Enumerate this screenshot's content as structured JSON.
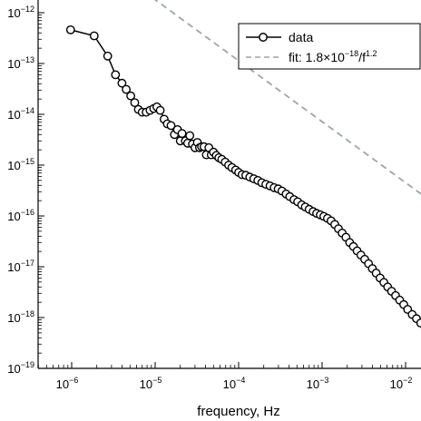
{
  "chart_data": {
    "type": "line",
    "xscale": "log",
    "yscale": "log",
    "xlim": [
      4e-07,
      0.02
    ],
    "ylim": [
      1e-19,
      1e-12
    ],
    "xlabel": "frequency, Hz",
    "ylabel": "",
    "grid": false,
    "legend_position": "top-right",
    "x_ticks": [
      {
        "base": "10",
        "exp": "−6",
        "value": 1e-06
      },
      {
        "base": "10",
        "exp": "−5",
        "value": 1e-05
      },
      {
        "base": "10",
        "exp": "−4",
        "value": 0.0001
      },
      {
        "base": "10",
        "exp": "−3",
        "value": 0.001
      },
      {
        "base": "10",
        "exp": "−2",
        "value": 0.01
      }
    ],
    "y_ticks": [
      {
        "base": "10",
        "exp": "−12",
        "value": 1e-12
      },
      {
        "base": "10",
        "exp": "−13",
        "value": 1e-13
      },
      {
        "base": "10",
        "exp": "−14",
        "value": 1e-14
      },
      {
        "base": "10",
        "exp": "−15",
        "value": 1e-15
      },
      {
        "base": "10",
        "exp": "−16",
        "value": 1e-16
      },
      {
        "base": "10",
        "exp": "−17",
        "value": 1e-17
      },
      {
        "base": "10",
        "exp": "−18",
        "value": 1e-18
      },
      {
        "base": "10",
        "exp": "−19",
        "value": 1e-19
      }
    ],
    "series": [
      {
        "name": "data",
        "style": "line+circle-markers",
        "color": "#000000",
        "points": [
          [
            9.7e-07,
            4.6e-13
          ],
          [
            1.86e-06,
            3.5e-13
          ],
          [
            2.7e-06,
            1.4e-13
          ],
          [
            3.35e-06,
            6e-14
          ],
          [
            4e-06,
            4.1e-14
          ],
          [
            4.5e-06,
            3.1e-14
          ],
          [
            5.1e-06,
            2.3e-14
          ],
          [
            5.7e-06,
            1.7e-14
          ],
          [
            6.3e-06,
            1.25e-14
          ],
          [
            7e-06,
            1.1e-14
          ],
          [
            7.8e-06,
            1.1e-14
          ],
          [
            8.7e-06,
            1.2e-14
          ],
          [
            9.6e-06,
            1.3e-14
          ],
          [
            1.05e-05,
            1.4e-14
          ],
          [
            1.15e-05,
            1.2e-14
          ],
          [
            1.28e-05,
            8e-15
          ],
          [
            1.4e-05,
            6.5e-15
          ],
          [
            1.55e-05,
            6e-15
          ],
          [
            1.7e-05,
            4e-15
          ],
          [
            1.85e-05,
            5e-15
          ],
          [
            2e-05,
            3e-15
          ],
          [
            2.1e-05,
            4.2e-15
          ],
          [
            2.3e-05,
            3e-15
          ],
          [
            2.45e-05,
            2.7e-15
          ],
          [
            2.6e-05,
            3.8e-15
          ],
          [
            2.8e-05,
            2.6e-15
          ],
          [
            3e-05,
            2.2e-15
          ],
          [
            3.2e-05,
            2.8e-15
          ],
          [
            3.4e-05,
            2.2e-15
          ],
          [
            3.6e-05,
            2.3e-15
          ],
          [
            3.85e-05,
            2.3e-15
          ],
          [
            4.1e-05,
            1.6e-15
          ],
          [
            4.4e-05,
            2.2e-15
          ],
          [
            4.7e-05,
            1.6e-15
          ],
          [
            5e-05,
            1.8e-15
          ],
          [
            5.4e-05,
            1.55e-15
          ],
          [
            5.8e-05,
            1.4e-15
          ],
          [
            6.3e-05,
            1.3e-15
          ],
          [
            6.9e-05,
            1.15e-15
          ],
          [
            7.6e-05,
            1e-15
          ],
          [
            8.3e-05,
            9e-16
          ],
          [
            9.2e-05,
            8e-16
          ],
          [
            0.0001,
            7.2e-16
          ],
          [
            0.00011,
            6.5e-16
          ],
          [
            0.000122,
            6.3e-16
          ],
          [
            0.000136,
            5.8e-16
          ],
          [
            0.000152,
            5.4e-16
          ],
          [
            0.00017,
            5e-16
          ],
          [
            0.00019,
            4.5e-16
          ],
          [
            0.000212,
            4.2e-16
          ],
          [
            0.000238,
            3.9e-16
          ],
          [
            0.000266,
            3.6e-16
          ],
          [
            0.000298,
            3.4e-16
          ],
          [
            0.00033,
            3.1e-16
          ],
          [
            0.00037,
            2.7e-16
          ],
          [
            0.00041,
            2.4e-16
          ],
          [
            0.00046,
            2.1e-16
          ],
          [
            0.00051,
            1.9e-16
          ],
          [
            0.00057,
            1.65e-16
          ],
          [
            0.00063,
            1.5e-16
          ],
          [
            0.0007,
            1.35e-16
          ],
          [
            0.00078,
            1.22e-16
          ],
          [
            0.00086,
            1.12e-16
          ],
          [
            0.00095,
            1.05e-16
          ],
          [
            0.00105,
            9.8e-17
          ],
          [
            0.00116,
            9e-17
          ],
          [
            0.00128,
            8e-17
          ],
          [
            0.00142,
            6.8e-17
          ],
          [
            0.00157,
            5.6e-17
          ],
          [
            0.00174,
            4.6e-17
          ],
          [
            0.00193,
            3.8e-17
          ],
          [
            0.00214,
            3e-17
          ],
          [
            0.00237,
            2.5e-17
          ],
          [
            0.00263,
            2.05e-17
          ],
          [
            0.00292,
            1.7e-17
          ],
          [
            0.00324,
            1.4e-17
          ],
          [
            0.0036,
            1.15e-17
          ],
          [
            0.004,
            9.2e-18
          ],
          [
            0.00445,
            7.5e-18
          ],
          [
            0.00495,
            6e-18
          ],
          [
            0.0055,
            4.9e-18
          ],
          [
            0.0061,
            4e-18
          ],
          [
            0.0068,
            3.3e-18
          ],
          [
            0.0076,
            2.7e-18
          ],
          [
            0.0085,
            2.2e-18
          ],
          [
            0.0095,
            1.8e-18
          ],
          [
            0.0106,
            1.45e-18
          ],
          [
            0.012,
            1.15e-18
          ],
          [
            0.0135,
            9.5e-19
          ],
          [
            0.0152,
            7.8e-19
          ],
          [
            0.0172,
            6.3e-19
          ],
          [
            0.0195,
            5e-19
          ]
        ]
      },
      {
        "name": "fit",
        "style": "dashed",
        "color": "#9aa7a3",
        "amplitude": 1.8e-18,
        "exponent": 1.2
      }
    ],
    "legend": {
      "data_label": "data",
      "fit_prefix": "fit: 1.8",
      "fit_times": "×",
      "fit_base": "10",
      "fit_coef_exp": "−18",
      "fit_div": "/f",
      "fit_f_exp": "1.2"
    }
  }
}
